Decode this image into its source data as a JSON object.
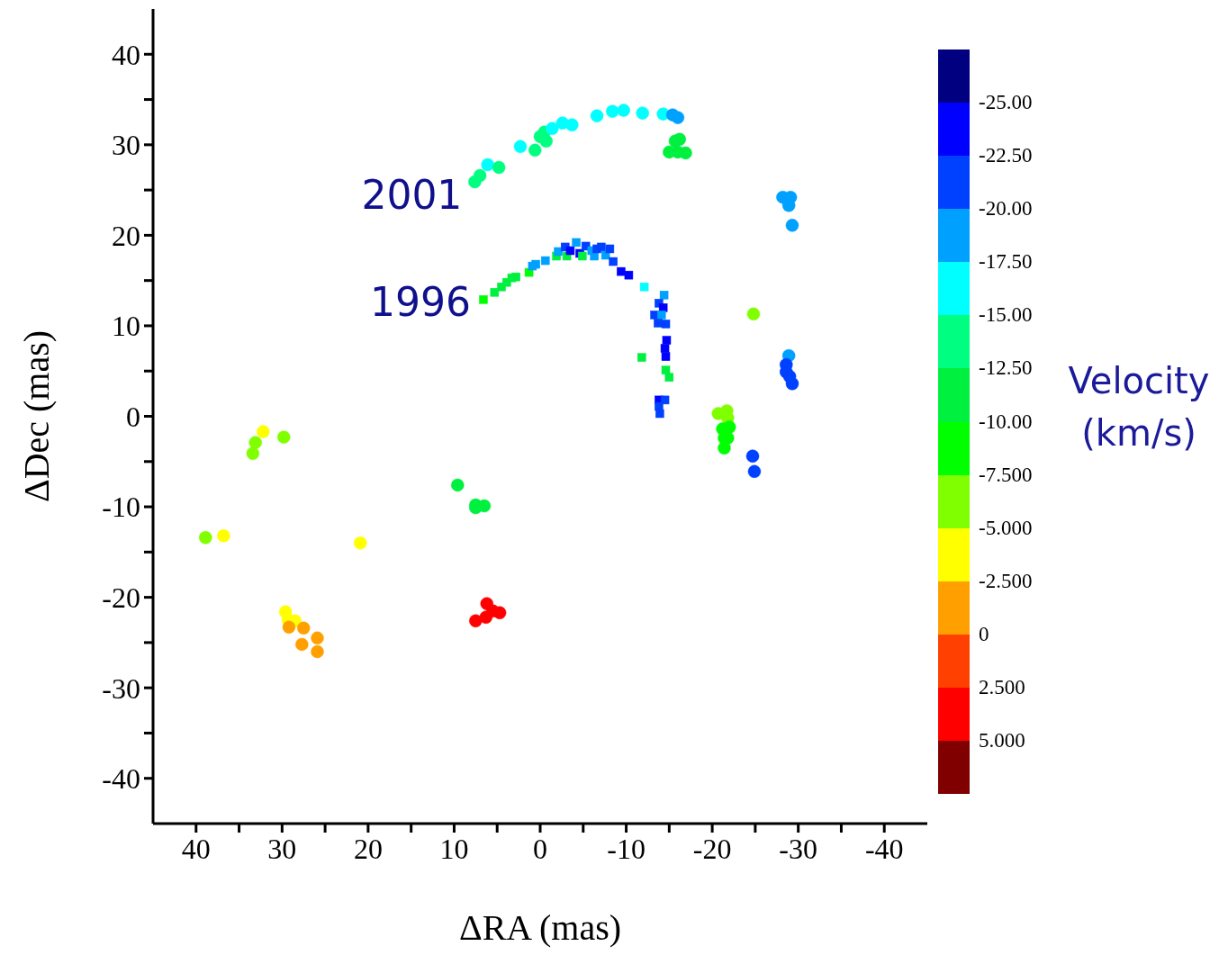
{
  "chart_data": {
    "type": "scatter",
    "xlabel": "ΔRA (mas)",
    "ylabel": "ΔDec (mas)",
    "clabel": "Velocity (km/s)",
    "xlim": [
      45,
      -45
    ],
    "ylim": [
      -45,
      45
    ],
    "xticks": [
      40,
      {
        "value": 35,
        "label": null
      },
      30,
      {
        "value": 25,
        "label": null
      },
      20,
      {
        "value": 15,
        "label": null
      },
      10,
      {
        "value": 5,
        "label": null
      },
      0,
      {
        "value": -5,
        "label": null
      },
      -10,
      {
        "value": -15,
        "label": null
      },
      -20,
      {
        "value": -25,
        "label": null
      },
      -30,
      {
        "value": -35,
        "label": null
      },
      -40
    ],
    "yticks": [
      40,
      {
        "value": 35,
        "label": null
      },
      30,
      {
        "value": 25,
        "label": null
      },
      20,
      {
        "value": 15,
        "label": null
      },
      10,
      {
        "value": 5,
        "label": null
      },
      0,
      {
        "value": -5,
        "label": null
      },
      -10,
      {
        "value": -15,
        "label": null
      },
      -20,
      {
        "value": -25,
        "label": null
      },
      -30,
      {
        "value": -35,
        "label": null
      },
      -40
    ],
    "clim": [
      7.5,
      -27.5
    ],
    "cticks": [
      {
        "value": -25,
        "label": "-25.00"
      },
      {
        "value": -22.5,
        "label": "-22.50"
      },
      {
        "value": -20,
        "label": "-20.00"
      },
      {
        "value": -17.5,
        "label": "-17.50"
      },
      {
        "value": -15,
        "label": "-15.00"
      },
      {
        "value": -12.5,
        "label": "-12.50"
      },
      {
        "value": -10,
        "label": "-10.00"
      },
      {
        "value": -7.5,
        "label": "-7.500"
      },
      {
        "value": -5,
        "label": "-5.000"
      },
      {
        "value": -2.5,
        "label": "-2.500"
      },
      0,
      {
        "value": 2.5,
        "label": "2.500"
      },
      {
        "value": 5,
        "label": "5.000"
      }
    ],
    "grid": false,
    "legend": false,
    "annotations": [
      "2001",
      "1996"
    ],
    "series": [
      {
        "marker": "circle",
        "x": [
          7.6,
          7.0,
          6.1,
          4.8,
          2.3,
          0.6,
          0,
          -0.5,
          -0.7,
          -1.4,
          -2.6,
          -3.7,
          -6.6,
          -8.4,
          -9.7,
          -11.9,
          -14.3,
          -15.4,
          -16.0,
          -15.7,
          -16.2,
          -15.0,
          -16.0,
          -16.9,
          -28.2,
          -29.1,
          -28.9,
          -29.3,
          -24.8,
          -28.9,
          -28.6,
          -28.6,
          -29.0,
          -29.3,
          -20.7,
          -21.7,
          -21.8,
          -21.2,
          -22.0,
          -21.4,
          -21.8,
          -21.4,
          -24.7,
          -24.9,
          32.2,
          33.1,
          33.4,
          29.8,
          38.9,
          36.8,
          20.9,
          9.6,
          7.5,
          7.5,
          6.5,
          29.6,
          29.3,
          28.5,
          29.2,
          27.5,
          25.9,
          27.7,
          25.9,
          6.2,
          5.5,
          4.7,
          6.3,
          7.5
        ],
        "values": [
          25.9,
          26.6,
          27.8,
          27.5,
          29.8,
          29.4,
          30.9,
          31.4,
          30.4,
          31.8,
          32.4,
          32.2,
          33.2,
          33.7,
          33.8,
          33.5,
          33.4,
          33.3,
          33.0,
          30.4,
          30.6,
          29.2,
          29.2,
          29.1,
          24.2,
          24.2,
          23.3,
          21.1,
          11.3,
          6.7,
          5.7,
          4.9,
          4.4,
          3.6,
          0.3,
          0.6,
          -0.2,
          -1.4,
          -1.2,
          -2.4,
          -2.4,
          -3.5,
          -4.4,
          -6.1,
          -1.7,
          -2.9,
          -4.1,
          -2.3,
          -13.4,
          -13.2,
          -14.0,
          -7.6,
          -10.1,
          -9.8,
          -9.9,
          -21.6,
          -22.5,
          -22.6,
          -23.3,
          -23.4,
          -24.5,
          -25.2,
          -26.0,
          -20.7,
          -21.5,
          -21.7,
          -22.2,
          -22.6
        ],
        "cvalues": [
          -13.75,
          -13.75,
          -16.25,
          -13.75,
          -16.25,
          -13.75,
          -13.75,
          -13.75,
          -13.75,
          -16.25,
          -16.25,
          -16.25,
          -16.25,
          -16.25,
          -16.25,
          -16.25,
          -16.25,
          -18.75,
          -18.75,
          -11.25,
          -11.25,
          -11.25,
          -11.25,
          -11.25,
          -18.75,
          -18.75,
          -18.75,
          -18.75,
          -6.25,
          -18.75,
          -21.25,
          -21.25,
          -21.25,
          -21.25,
          -6.25,
          -6.25,
          -6.25,
          -8.75,
          -8.75,
          -8.75,
          -8.75,
          -8.75,
          -21.25,
          -21.25,
          -3.75,
          -6.25,
          -6.25,
          -6.25,
          -6.25,
          -3.75,
          -3.75,
          -11.25,
          -11.25,
          -11.25,
          -11.25,
          -3.75,
          -3.75,
          -3.75,
          -1.25,
          -1.25,
          -1.25,
          -1.25,
          -1.25,
          3.75,
          3.75,
          3.75,
          3.75,
          3.75
        ],
        "colors": [
          "#00ff80",
          "#00ff80",
          "#00ffff",
          "#00ff80",
          "#00ffff",
          "#00ff80",
          "#00ff80",
          "#00ff80",
          "#00ff80",
          "#00ffff",
          "#00ffff",
          "#00ffff",
          "#00ffff",
          "#00ffff",
          "#00ffff",
          "#00ffff",
          "#00ffff",
          "#00a0ff",
          "#00a0ff",
          "#00f040",
          "#00f040",
          "#00f040",
          "#00f040",
          "#00f040",
          "#00a0ff",
          "#00a0ff",
          "#00a0ff",
          "#00a0ff",
          "#80ff00",
          "#00a0ff",
          "#0040ff",
          "#0040ff",
          "#0040ff",
          "#0040ff",
          "#80ff00",
          "#80ff00",
          "#80ff00",
          "#00ff00",
          "#00ff00",
          "#00ff00",
          "#00ff00",
          "#00ff00",
          "#0040ff",
          "#0040ff",
          "#ffff00",
          "#80ff00",
          "#80ff00",
          "#80ff00",
          "#80ff00",
          "#ffff00",
          "#ffff00",
          "#00f040",
          "#00f040",
          "#00f040",
          "#00f040",
          "#ffff00",
          "#ffff00",
          "#ffff00",
          "#ffa000",
          "#ffa000",
          "#ffa000",
          "#ffa000",
          "#ffa000",
          "#ff0000",
          "#ff0000",
          "#ff0000",
          "#ff0000",
          "#ff0000"
        ]
      },
      {
        "marker": "square",
        "x": [
          6.6,
          5.3,
          4.5,
          3.9,
          3.3,
          2.8,
          1.3,
          0.9,
          0.5,
          -0.6,
          -1.9,
          -2.1,
          -2.9,
          -3.1,
          -3.5,
          -4.2,
          -4.6,
          -4.9,
          -5.3,
          -6.0,
          -6.3,
          -6.6,
          -7.1,
          -7.6,
          -8.1,
          -8.5,
          -9.4,
          -10.3,
          -12.1,
          -14.4,
          -13.8,
          -13.3,
          -14.3,
          -14.1,
          -14.6,
          -13.7,
          -14.7,
          -14.5,
          -14.6,
          -11.8,
          -14.6,
          -15.0,
          -13.8,
          -14.5,
          -13.9,
          -13.8
        ],
        "values": [
          12.9,
          13.7,
          14.3,
          14.8,
          15.3,
          15.4,
          15.9,
          16.6,
          16.8,
          17.2,
          17.7,
          18.2,
          18.7,
          17.7,
          18.3,
          19.2,
          18.0,
          17.7,
          18.8,
          18.3,
          17.7,
          18.5,
          18.7,
          17.8,
          18.5,
          17.1,
          16.0,
          15.6,
          14.3,
          13.4,
          12.5,
          11.2,
          12.0,
          11.2,
          10.2,
          10.3,
          8.4,
          7.5,
          6.6,
          6.5,
          5.1,
          4.3,
          1.8,
          1.8,
          0.3,
          1.1
        ],
        "cvalues": [
          -8.75,
          -11.25,
          -11.25,
          -11.25,
          -11.25,
          -11.25,
          -8.75,
          -18.75,
          -18.75,
          -18.75,
          -11.25,
          -18.75,
          -21.25,
          -11.25,
          -23.75,
          -18.75,
          -23.75,
          -11.25,
          -21.25,
          -18.75,
          -18.75,
          -21.25,
          -21.25,
          -18.75,
          -21.25,
          -21.25,
          -23.75,
          -23.75,
          -16.25,
          -18.75,
          -21.25,
          -21.25,
          -23.75,
          -18.75,
          -21.25,
          -21.25,
          -23.75,
          -23.75,
          -23.75,
          -11.25,
          -11.25,
          -11.25,
          -23.75,
          -21.25,
          -21.25,
          -21.25
        ],
        "colors": [
          "#00ff00",
          "#00f040",
          "#00f040",
          "#00f040",
          "#00f040",
          "#00f040",
          "#00ff00",
          "#00a0ff",
          "#00a0ff",
          "#00a0ff",
          "#00f040",
          "#00a0ff",
          "#0040ff",
          "#00f040",
          "#0000ff",
          "#00a0ff",
          "#0000ff",
          "#00f040",
          "#0040ff",
          "#00a0ff",
          "#00a0ff",
          "#0040ff",
          "#0040ff",
          "#00a0ff",
          "#0040ff",
          "#0040ff",
          "#0000ff",
          "#0000ff",
          "#00ffff",
          "#00a0ff",
          "#0040ff",
          "#0040ff",
          "#0000ff",
          "#00a0ff",
          "#0040ff",
          "#0040ff",
          "#0000ff",
          "#0000ff",
          "#0000ff",
          "#00f040",
          "#00f040",
          "#00f040",
          "#0000ff",
          "#0040ff",
          "#0040ff",
          "#0040ff"
        ]
      }
    ]
  }
}
